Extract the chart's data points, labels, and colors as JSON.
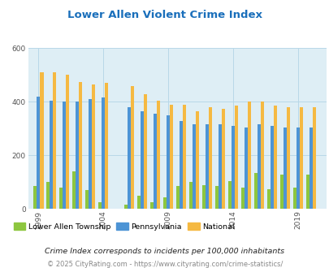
{
  "title": "Lower Allen Violent Crime Index",
  "title_color": "#1a6fbb",
  "background_color": "#deeef5",
  "fig_background": "#ffffff",
  "years": [
    1999,
    2000,
    2001,
    2002,
    2003,
    2004,
    2006,
    2007,
    2008,
    2009,
    2010,
    2011,
    2012,
    2013,
    2014,
    2015,
    2016,
    2017,
    2018,
    2019,
    2020
  ],
  "lower_allen": [
    85,
    100,
    80,
    140,
    70,
    25,
    15,
    50,
    25,
    45,
    85,
    100,
    90,
    85,
    105,
    80,
    135,
    75,
    130,
    80,
    130
  ],
  "pennsylvania": [
    420,
    405,
    400,
    400,
    410,
    415,
    380,
    365,
    355,
    350,
    330,
    315,
    315,
    315,
    310,
    305,
    315,
    310,
    305,
    305,
    305
  ],
  "national": [
    510,
    510,
    500,
    475,
    465,
    470,
    460,
    430,
    405,
    390,
    390,
    365,
    380,
    375,
    385,
    400,
    400,
    385,
    380,
    380,
    380
  ],
  "color_lower_allen": "#8dc63f",
  "color_pennsylvania": "#4d94d5",
  "color_national": "#f5b942",
  "ylim": [
    0,
    600
  ],
  "yticks": [
    0,
    200,
    400,
    600
  ],
  "xticks": [
    1999,
    2004,
    2009,
    2014,
    2019
  ],
  "grid_color": "#b8d8e8",
  "legend_labels": [
    "Lower Allen Township",
    "Pennsylvania",
    "National"
  ],
  "footnote1": "Crime Index corresponds to incidents per 100,000 inhabitants",
  "footnote2": "© 2025 CityRating.com - https://www.cityrating.com/crime-statistics/",
  "footnote1_color": "#222222",
  "footnote2_color": "#888888"
}
